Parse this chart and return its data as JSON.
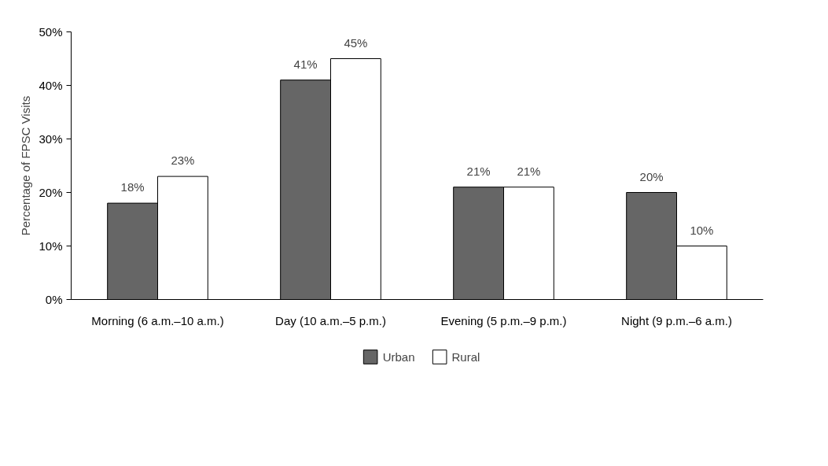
{
  "chart_data": {
    "type": "bar",
    "ylabel": "Percentage of FPSC Visits",
    "categories": [
      "Morning (6 a.m.–10 a.m.)",
      "Day (10 a.m.–5 p.m.)",
      "Evening (5 p.m.–9 p.m.)",
      "Night (9 p.m.–6 a.m.)"
    ],
    "series": [
      {
        "name": "Urban",
        "color": "#666666",
        "values": [
          18,
          41,
          21,
          20
        ],
        "value_labels": [
          "18%",
          "41%",
          "21%",
          "20%"
        ]
      },
      {
        "name": "Rural",
        "color": "#ffffff",
        "values": [
          23,
          45,
          21,
          10
        ],
        "value_labels": [
          "23%",
          "45%",
          "21%",
          "10%"
        ]
      }
    ],
    "ylim": [
      0,
      50
    ],
    "yticks": [
      {
        "value": 0,
        "label": "0%"
      },
      {
        "value": 10,
        "label": "10%"
      },
      {
        "value": 20,
        "label": "20%"
      },
      {
        "value": 30,
        "label": "30%"
      },
      {
        "value": 40,
        "label": "40%"
      },
      {
        "value": 50,
        "label": "50%"
      }
    ],
    "grid": false,
    "legend": "bottom"
  }
}
